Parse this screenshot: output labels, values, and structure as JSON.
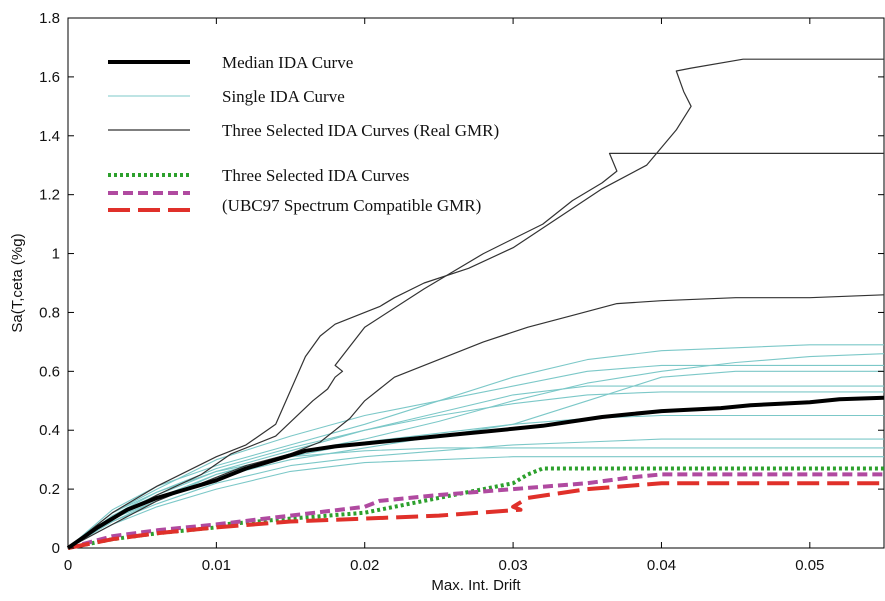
{
  "chart_data": {
    "type": "line",
    "xlabel": "Max. Int. Drift",
    "ylabel": "Sa(T,ceta (%g)",
    "xlim": [
      0,
      0.055
    ],
    "ylim": [
      0,
      1.8
    ],
    "xticks": [
      0,
      0.01,
      0.02,
      0.03,
      0.04,
      0.05
    ],
    "xtick_labels": [
      "0",
      "0.01",
      "0.02",
      "0.03",
      "0.04",
      "0.05"
    ],
    "yticks": [
      0,
      0.2,
      0.4,
      0.6,
      0.8,
      1,
      1.2,
      1.4,
      1.6,
      1.8
    ],
    "ytick_labels": [
      "0",
      "0.2",
      "0.4",
      "0.6",
      "0.8",
      "1",
      "1.2",
      "1.4",
      "1.6",
      "1.8"
    ],
    "grid": false,
    "legend_position": "top-left",
    "legend_entries": [
      "Median IDA Curve",
      "Single IDA Curve",
      "Three Selected IDA Curves (Real GMR)",
      "Three Selected IDA Curves",
      " (UBC97 Spectrum Compatible GMR)"
    ],
    "series": [
      {
        "name": "Median IDA Curve",
        "color": "#000000",
        "style": "solid-thick",
        "x": [
          0,
          0.002,
          0.004,
          0.006,
          0.008,
          0.01,
          0.012,
          0.014,
          0.016,
          0.018,
          0.02,
          0.022,
          0.024,
          0.026,
          0.028,
          0.03,
          0.032,
          0.034,
          0.036,
          0.038,
          0.04,
          0.042,
          0.044,
          0.046,
          0.048,
          0.05,
          0.052,
          0.055
        ],
        "y": [
          0,
          0.07,
          0.13,
          0.17,
          0.2,
          0.23,
          0.27,
          0.3,
          0.33,
          0.345,
          0.355,
          0.365,
          0.375,
          0.385,
          0.395,
          0.405,
          0.415,
          0.43,
          0.445,
          0.455,
          0.465,
          0.47,
          0.475,
          0.485,
          0.49,
          0.495,
          0.505,
          0.51
        ]
      },
      {
        "name": "Single IDA Curve",
        "color": "#7cc8c8",
        "style": "thin",
        "x": [
          0,
          0.003,
          0.006,
          0.01,
          0.015,
          0.02,
          0.025,
          0.03,
          0.035,
          0.04,
          0.045,
          0.05,
          0.055
        ],
        "y": [
          0,
          0.1,
          0.17,
          0.25,
          0.32,
          0.37,
          0.43,
          0.5,
          0.56,
          0.6,
          0.63,
          0.65,
          0.66
        ]
      },
      {
        "name": "Single IDA Curve",
        "color": "#7cc8c8",
        "style": "thin",
        "x": [
          0,
          0.003,
          0.006,
          0.01,
          0.015,
          0.02,
          0.025,
          0.03,
          0.035,
          0.04,
          0.045,
          0.05,
          0.055
        ],
        "y": [
          0,
          0.12,
          0.2,
          0.3,
          0.38,
          0.45,
          0.5,
          0.55,
          0.6,
          0.62,
          0.62,
          0.62,
          0.62
        ]
      },
      {
        "name": "Single IDA Curve",
        "color": "#7cc8c8",
        "style": "thin",
        "x": [
          0,
          0.003,
          0.006,
          0.01,
          0.015,
          0.02,
          0.025,
          0.03,
          0.035,
          0.04,
          0.045,
          0.05,
          0.055
        ],
        "y": [
          0,
          0.09,
          0.15,
          0.22,
          0.28,
          0.31,
          0.33,
          0.35,
          0.36,
          0.37,
          0.37,
          0.37,
          0.37
        ]
      },
      {
        "name": "Single IDA Curve",
        "color": "#7cc8c8",
        "style": "thin",
        "x": [
          0,
          0.003,
          0.006,
          0.01,
          0.015,
          0.02,
          0.025,
          0.03,
          0.035,
          0.04,
          0.045,
          0.05,
          0.055
        ],
        "y": [
          0,
          0.11,
          0.18,
          0.26,
          0.33,
          0.4,
          0.46,
          0.52,
          0.55,
          0.55,
          0.55,
          0.55,
          0.55
        ]
      },
      {
        "name": "Single IDA Curve",
        "color": "#7cc8c8",
        "style": "thin",
        "x": [
          0,
          0.003,
          0.006,
          0.01,
          0.015,
          0.02,
          0.025,
          0.03,
          0.035,
          0.04,
          0.045,
          0.05,
          0.055
        ],
        "y": [
          0,
          0.08,
          0.14,
          0.2,
          0.26,
          0.29,
          0.3,
          0.31,
          0.31,
          0.31,
          0.31,
          0.31,
          0.31
        ]
      },
      {
        "name": "Single IDA Curve",
        "color": "#7cc8c8",
        "style": "thin",
        "x": [
          0,
          0.003,
          0.006,
          0.01,
          0.015,
          0.02,
          0.025,
          0.03,
          0.035,
          0.04,
          0.045,
          0.05,
          0.055
        ],
        "y": [
          0,
          0.13,
          0.21,
          0.28,
          0.35,
          0.42,
          0.5,
          0.58,
          0.64,
          0.67,
          0.68,
          0.69,
          0.69
        ]
      },
      {
        "name": "Single IDA Curve",
        "color": "#7cc8c8",
        "style": "thin",
        "x": [
          0,
          0.003,
          0.006,
          0.01,
          0.015,
          0.02,
          0.025,
          0.03,
          0.035,
          0.04,
          0.045,
          0.05,
          0.055
        ],
        "y": [
          0,
          0.1,
          0.16,
          0.24,
          0.3,
          0.34,
          0.38,
          0.42,
          0.44,
          0.45,
          0.45,
          0.45,
          0.45
        ]
      },
      {
        "name": "Single IDA Curve",
        "color": "#7cc8c8",
        "style": "thin",
        "x": [
          0,
          0.003,
          0.006,
          0.01,
          0.015,
          0.02,
          0.025,
          0.03,
          0.035,
          0.04,
          0.045,
          0.05,
          0.055
        ],
        "y": [
          0,
          0.11,
          0.19,
          0.27,
          0.34,
          0.4,
          0.45,
          0.49,
          0.52,
          0.53,
          0.53,
          0.53,
          0.53
        ]
      },
      {
        "name": "Single IDA Curve",
        "color": "#7cc8c8",
        "style": "thin",
        "x": [
          0,
          0.003,
          0.006,
          0.01,
          0.015,
          0.02,
          0.025,
          0.03,
          0.035,
          0.04,
          0.045,
          0.05,
          0.055
        ],
        "y": [
          0,
          0.09,
          0.16,
          0.25,
          0.31,
          0.36,
          0.39,
          0.42,
          0.5,
          0.58,
          0.6,
          0.6,
          0.6
        ]
      },
      {
        "name": "Single IDA Curve",
        "color": "#7cc8c8",
        "style": "thin",
        "x": [
          0,
          0.003,
          0.006,
          0.01,
          0.015,
          0.02,
          0.025,
          0.03,
          0.035,
          0.04,
          0.045,
          0.05,
          0.055
        ],
        "y": [
          0,
          0.12,
          0.19,
          0.26,
          0.31,
          0.33,
          0.34,
          0.34,
          0.34,
          0.34,
          0.34,
          0.34,
          0.34
        ]
      },
      {
        "name": "Three Selected IDA Curves (Real GMR)",
        "color": "#333333",
        "style": "thin-dark",
        "x": [
          0,
          0.003,
          0.006,
          0.01,
          0.012,
          0.014,
          0.016,
          0.017,
          0.018,
          0.019,
          0.02,
          0.021,
          0.022,
          0.024,
          0.027,
          0.03,
          0.033,
          0.036,
          0.039,
          0.041,
          0.042,
          0.0415,
          0.041,
          0.042,
          0.0455,
          0.055
        ],
        "y": [
          0,
          0.12,
          0.21,
          0.31,
          0.35,
          0.42,
          0.65,
          0.72,
          0.76,
          0.78,
          0.8,
          0.82,
          0.85,
          0.9,
          0.95,
          1.02,
          1.12,
          1.22,
          1.3,
          1.42,
          1.5,
          1.55,
          1.62,
          1.63,
          1.66,
          1.66
        ]
      },
      {
        "name": "Three Selected IDA Curves (Real GMR)",
        "color": "#333333",
        "style": "thin-dark",
        "x": [
          0,
          0.003,
          0.006,
          0.009,
          0.011,
          0.014,
          0.0165,
          0.0175,
          0.018,
          0.0185,
          0.018,
          0.02,
          0.024,
          0.028,
          0.032,
          0.034,
          0.036,
          0.037,
          0.0365,
          0.055
        ],
        "y": [
          0,
          0.1,
          0.18,
          0.25,
          0.32,
          0.38,
          0.5,
          0.54,
          0.58,
          0.6,
          0.62,
          0.75,
          0.88,
          1.0,
          1.1,
          1.18,
          1.24,
          1.28,
          1.34,
          1.34
        ]
      },
      {
        "name": "Three Selected IDA Curves (Real GMR)",
        "color": "#333333",
        "style": "thin-dark",
        "x": [
          0,
          0.003,
          0.006,
          0.008,
          0.01,
          0.012,
          0.015,
          0.017,
          0.018,
          0.019,
          0.02,
          0.022,
          0.025,
          0.028,
          0.031,
          0.034,
          0.037,
          0.04,
          0.045,
          0.05,
          0.055
        ],
        "y": [
          0,
          0.08,
          0.16,
          0.2,
          0.24,
          0.28,
          0.32,
          0.36,
          0.4,
          0.44,
          0.5,
          0.58,
          0.64,
          0.7,
          0.75,
          0.79,
          0.83,
          0.84,
          0.85,
          0.85,
          0.86
        ]
      },
      {
        "name": "Three Selected IDA Curves",
        "color": "#2ca02c",
        "style": "dotted",
        "x": [
          0,
          0.003,
          0.006,
          0.01,
          0.0105,
          0.015,
          0.02,
          0.025,
          0.03,
          0.031,
          0.032,
          0.04,
          0.055
        ],
        "y": [
          0,
          0.03,
          0.05,
          0.07,
          0.08,
          0.1,
          0.12,
          0.17,
          0.22,
          0.25,
          0.27,
          0.27,
          0.27
        ]
      },
      {
        "name": "(UBC97 Spectrum Compatible GMR)",
        "color": "#b04aa0",
        "style": "dashed",
        "x": [
          0,
          0.003,
          0.006,
          0.01,
          0.015,
          0.02,
          0.021,
          0.025,
          0.03,
          0.035,
          0.038,
          0.04,
          0.055
        ],
        "y": [
          0,
          0.04,
          0.06,
          0.08,
          0.11,
          0.14,
          0.16,
          0.18,
          0.2,
          0.22,
          0.24,
          0.25,
          0.25
        ]
      },
      {
        "name": "(UBC97 Spectrum Compatible GMR)",
        "color": "#e0302a",
        "style": "long-dash",
        "x": [
          0,
          0.003,
          0.006,
          0.01,
          0.015,
          0.02,
          0.025,
          0.0305,
          0.03,
          0.031,
          0.035,
          0.04,
          0.055
        ],
        "y": [
          0,
          0.03,
          0.05,
          0.07,
          0.09,
          0.1,
          0.11,
          0.13,
          0.14,
          0.17,
          0.2,
          0.22,
          0.22
        ]
      }
    ]
  }
}
